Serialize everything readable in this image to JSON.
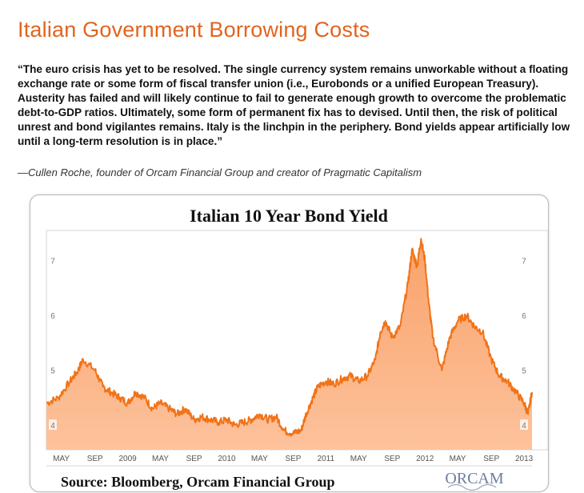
{
  "article": {
    "title": "Italian Government Borrowing Costs",
    "quote": "“The euro crisis has yet to be resolved. The single currency system remains unworkable without a floating exchange rate or some form of fiscal transfer union (i.e., Eurobonds or a unified European Treasury). Austerity has failed and will likely continue to fail to generate enough growth to overcome the problematic debt-to-GDP ratios. Ultimately, some form of permanent fix has to devised. Until then, the risk of political unrest and bond vigilantes remains. Italy is the linchpin in the periphery. Bond yields appear artificially low until a long-term resolution is in place.”",
    "attribution": "—Cullen Roche, founder of Orcam Financial Group and creator of Pragmatic Capitalism"
  },
  "chart_data": {
    "type": "area",
    "title": "Italian 10 Year Bond Yield",
    "source": "Source: Bloomberg, Orcam Financial Group",
    "logo_text": "ORCAM",
    "y_ticks": [
      "4",
      "5",
      "6",
      "7"
    ],
    "ylim": [
      3.55,
      7.55
    ],
    "grid": false,
    "colors": {
      "line": "#f07318",
      "fill": "#fbad7c"
    },
    "x_ticks": [
      {
        "label": "MAY",
        "t": 2008.33
      },
      {
        "label": "SEP",
        "t": 2008.67
      },
      {
        "label": "2009",
        "t": 2009.0
      },
      {
        "label": "MAY",
        "t": 2009.33
      },
      {
        "label": "SEP",
        "t": 2009.67
      },
      {
        "label": "2010",
        "t": 2010.0
      },
      {
        "label": "MAY",
        "t": 2010.33
      },
      {
        "label": "SEP",
        "t": 2010.67
      },
      {
        "label": "2011",
        "t": 2011.0
      },
      {
        "label": "MAY",
        "t": 2011.33
      },
      {
        "label": "SEP",
        "t": 2011.67
      },
      {
        "label": "2012",
        "t": 2012.0
      },
      {
        "label": "MAY",
        "t": 2012.33
      },
      {
        "label": "SEP",
        "t": 2012.67
      },
      {
        "label": "2013",
        "t": 2013.0
      }
    ],
    "x": [
      2008.18,
      2008.3,
      2008.42,
      2008.5,
      2008.55,
      2008.67,
      2008.75,
      2008.83,
      2008.92,
      2009.0,
      2009.08,
      2009.17,
      2009.25,
      2009.33,
      2009.42,
      2009.5,
      2009.58,
      2009.67,
      2009.75,
      2009.83,
      2009.92,
      2010.0,
      2010.08,
      2010.17,
      2010.25,
      2010.33,
      2010.42,
      2010.5,
      2010.58,
      2010.67,
      2010.75,
      2010.8,
      2010.87,
      2010.92,
      2011.0,
      2011.08,
      2011.17,
      2011.25,
      2011.33,
      2011.42,
      2011.5,
      2011.55,
      2011.6,
      2011.67,
      2011.75,
      2011.83,
      2011.87,
      2011.92,
      2011.96,
      2012.0,
      2012.04,
      2012.08,
      2012.17,
      2012.25,
      2012.33,
      2012.42,
      2012.5,
      2012.58,
      2012.67,
      2012.75,
      2012.83,
      2012.92,
      2013.0,
      2013.04,
      2013.08
    ],
    "values": [
      4.4,
      4.5,
      4.8,
      5.0,
      5.2,
      5.0,
      4.7,
      4.6,
      4.5,
      4.4,
      4.6,
      4.5,
      4.3,
      4.4,
      4.3,
      4.2,
      4.3,
      4.1,
      4.15,
      4.1,
      4.05,
      4.1,
      4.0,
      4.05,
      4.1,
      4.2,
      4.1,
      4.15,
      3.9,
      3.85,
      3.9,
      4.2,
      4.5,
      4.7,
      4.8,
      4.75,
      4.85,
      4.9,
      4.8,
      4.9,
      5.2,
      5.7,
      5.9,
      5.6,
      5.8,
      6.6,
      7.2,
      6.9,
      7.4,
      7.0,
      6.2,
      5.6,
      5.0,
      5.6,
      5.9,
      6.0,
      5.8,
      5.7,
      5.2,
      4.9,
      4.8,
      4.6,
      4.4,
      4.2,
      4.6
    ]
  }
}
